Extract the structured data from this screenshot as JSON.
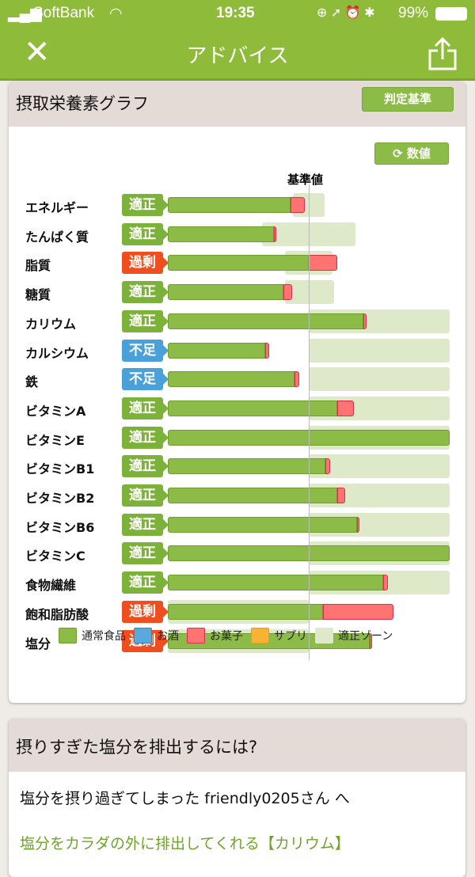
{
  "status_bar": {
    "carrier": "SoftBank",
    "time": "19:35",
    "battery": "99%"
  },
  "nav": {
    "title": "アドバイス",
    "close_icon": "close-icon",
    "share_icon": "share-icon"
  },
  "graph_card": {
    "title": "摂取栄養素グラフ",
    "criteria_button": "判定基準",
    "values_button": "数値",
    "reference_label": "基準値"
  },
  "colors": {
    "normal_food": "#8dbb47",
    "alcohol": "#5aa8dc",
    "snacks": "#ff7373",
    "supplement": "#f9b233",
    "zone": "#dde9c9",
    "status_ok": "#7cb23a",
    "status_over": "#f04e1e",
    "status_under": "#4aa0d8"
  },
  "chart_data": {
    "type": "bar",
    "orientation": "horizontal-stacked",
    "reference_value": 100,
    "xlim": [
      0,
      200
    ],
    "categories": [
      "エネルギー",
      "たんぱく質",
      "脂質",
      "糖質",
      "カリウム",
      "カルシウム",
      "鉄",
      "ビタミンA",
      "ビタミンE",
      "ビタミンB1",
      "ビタミンB2",
      "ビタミンB6",
      "ビタミンC",
      "食物繊維",
      "飽和脂肪酸",
      "塩分"
    ],
    "status": [
      "適正",
      "適正",
      "過剰",
      "適正",
      "適正",
      "不足",
      "不足",
      "適正",
      "適正",
      "適正",
      "適正",
      "適正",
      "適正",
      "適正",
      "過剰",
      "過剰"
    ],
    "status_type": [
      "ok",
      "ok",
      "over",
      "ok",
      "ok",
      "under",
      "under",
      "ok",
      "ok",
      "ok",
      "ok",
      "ok",
      "ok",
      "ok",
      "over",
      "over"
    ],
    "series": [
      {
        "name": "通常食品",
        "values": [
          87,
          75,
          100,
          82,
          139,
          69,
          90,
          120,
          200,
          112,
          120,
          134,
          200,
          153,
          110,
          143
        ]
      },
      {
        "name": "お菓子",
        "values": [
          10,
          1,
          20,
          6,
          2,
          3,
          3,
          12,
          0,
          3,
          6,
          2,
          0,
          3,
          50,
          2
        ]
      }
    ],
    "zone": [
      [
        89,
        111
      ],
      [
        67,
        133
      ],
      [
        83,
        117
      ],
      [
        83,
        118
      ],
      [
        100,
        200
      ],
      [
        100,
        200
      ],
      [
        100,
        200
      ],
      [
        100,
        200
      ],
      [
        100,
        200
      ],
      [
        100,
        200
      ],
      [
        100,
        200
      ],
      [
        100,
        200
      ],
      [
        100,
        200
      ],
      [
        100,
        200
      ],
      [
        0,
        100
      ],
      [
        0,
        100
      ]
    ],
    "legend": [
      "通常食品",
      "お酒",
      "お菓子",
      "サプリ",
      "適正ゾーン"
    ]
  },
  "advice_card": {
    "title": "摂りすぎた塩分を排出するには?",
    "greeting": "塩分を摂り過ぎてしまった friendly0205さん へ",
    "link": "塩分をカラダの外に排出してくれる【カリウム】"
  }
}
